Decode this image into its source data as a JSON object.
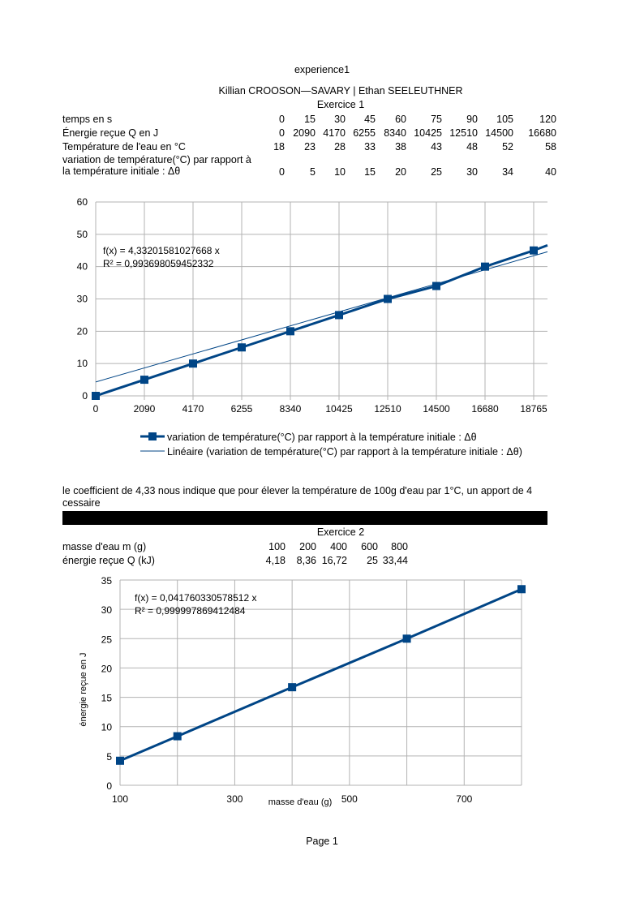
{
  "header": {
    "title": "experience1",
    "authors": "Killian CROOSON—SAVARY | Ethan SEELEUTHNER",
    "exercise1_title": "Exercice 1",
    "exercise2_title": "Exercice 2",
    "footer": "Page 1"
  },
  "table1": {
    "rows": [
      {
        "label": "temps en s",
        "label2": "",
        "values": [
          "0",
          "15",
          "30",
          "45",
          "60",
          "75",
          "90",
          "105",
          "120"
        ]
      },
      {
        "label": "Énergie reçue Q en J",
        "label2": "",
        "values": [
          "0",
          "2090",
          "4170",
          "6255",
          "8340",
          "10425",
          "12510",
          "14500",
          "16680"
        ]
      },
      {
        "label": "Température de l'eau en °C",
        "label2": "",
        "values": [
          "18",
          "23",
          "28",
          "33",
          "38",
          "43",
          "48",
          "52",
          "58"
        ]
      },
      {
        "label": "variation de température(°C) par rapport à",
        "label2": "la température initiale : Δθ",
        "values": [
          "0",
          "5",
          "10",
          "15",
          "20",
          "25",
          "30",
          "34",
          "40"
        ]
      }
    ]
  },
  "comment": {
    "line1": "le coefficient de 4,33 nous indique que pour élever la température de 100g d'eau par 1°C, un apport de 4",
    "line2": "cessaire"
  },
  "table2": {
    "rows": [
      {
        "label": "masse d'eau m (g)",
        "values": [
          "100",
          "200",
          "400",
          "600",
          "800"
        ]
      },
      {
        "label": "énergie reçue Q (kJ)",
        "values": [
          "4,18",
          "8,36",
          "16,72",
          "25",
          "33,44"
        ]
      }
    ]
  },
  "chart_data": [
    {
      "type": "line",
      "categories": [
        "0",
        "2090",
        "4170",
        "6255",
        "8340",
        "10425",
        "12510",
        "14500",
        "16680",
        "18765"
      ],
      "series": [
        {
          "name": "variation de température(°C) par rapport à la température initiale : Δθ",
          "values": [
            0,
            5,
            10,
            15,
            20,
            25,
            30,
            34,
            40,
            45
          ],
          "color": "#004586"
        },
        {
          "name": "Linéaire (variation de température(°C) par rapport à la température initiale : Δθ)",
          "trendline": true,
          "color": "#004586"
        }
      ],
      "trend_equation": "f(x) = 4,33201581027668 x",
      "trend_r2": "R² = 0,993698059452332",
      "ylim": [
        0,
        60
      ],
      "yticks": [
        "0",
        "10",
        "20",
        "30",
        "40",
        "50",
        "60"
      ],
      "grid": true,
      "legend": "bottom"
    },
    {
      "type": "scatter",
      "x": [
        100,
        200,
        400,
        600,
        800
      ],
      "y": [
        4.18,
        8.36,
        16.72,
        25,
        33.44
      ],
      "trend_equation": "f(x) = 0,041760330578512 x",
      "trend_r2": "R² = 0,999997869412484",
      "xlabel": "masse d'eau (g)",
      "ylabel": "énergie reçue en J",
      "xlim": [
        100,
        800
      ],
      "ylim": [
        0,
        35
      ],
      "xticks": [
        "100",
        "300",
        "500",
        "700"
      ],
      "yticks": [
        "0",
        "5",
        "10",
        "15",
        "20",
        "25",
        "30",
        "35"
      ],
      "grid": true,
      "color": "#004586"
    }
  ]
}
